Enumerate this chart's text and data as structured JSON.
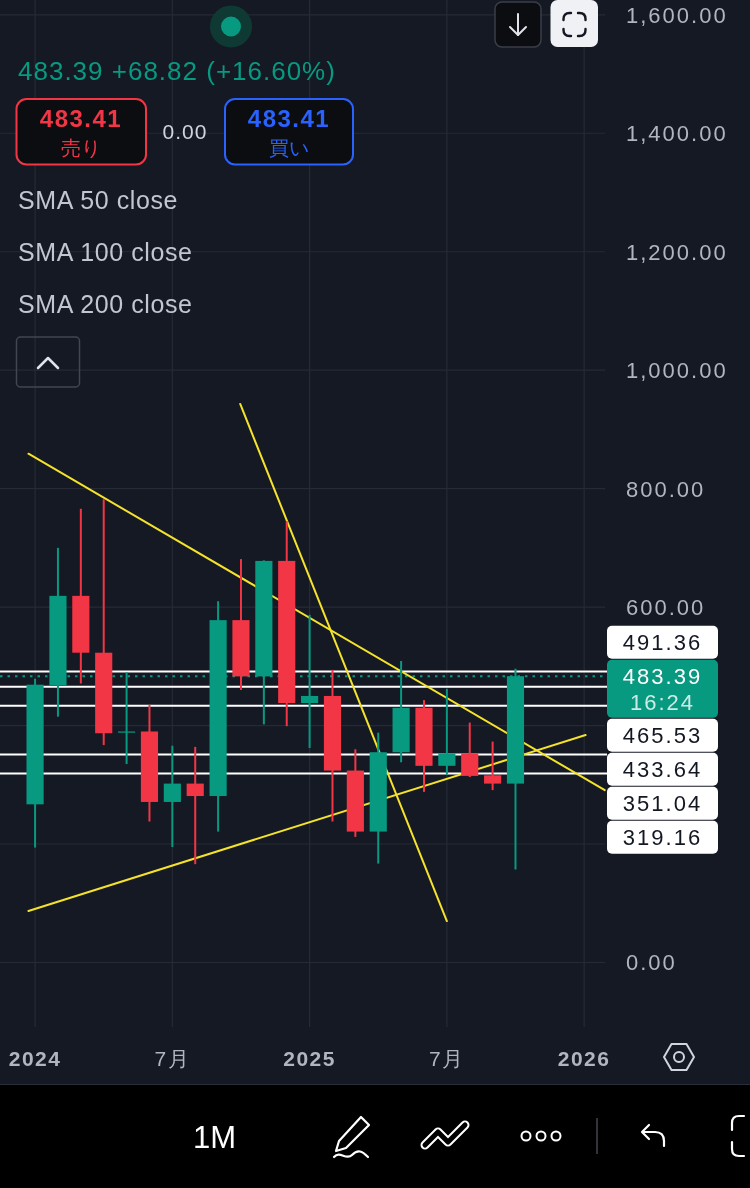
{
  "chart_data": {
    "type": "candlestick",
    "subtitle": "483.39 +68.82 (+16.60%)",
    "annotations": [
      "483.41",
      "売り",
      "0.00",
      "483.41",
      "買い",
      "SMA 50 close",
      "SMA 100 close",
      "SMA 200 close",
      "1M"
    ],
    "x": [
      "2024-01",
      "2024-02",
      "2024-03",
      "2024-04",
      "2024-05",
      "2024-06",
      "2024-07",
      "2024-08",
      "2024-09",
      "2024-10",
      "2024-11",
      "2024-12",
      "2025-01",
      "2025-02",
      "2025-03",
      "2025-04",
      "2025-05",
      "2025-06",
      "2025-07",
      "2025-08",
      "2025-09",
      "2025-10"
    ],
    "ohlc": [
      [
        267,
        479,
        194,
        469
      ],
      [
        468,
        700,
        415,
        619
      ],
      [
        619,
        766,
        471,
        523
      ],
      [
        523,
        782,
        367,
        387
      ],
      [
        388,
        490,
        335,
        390
      ],
      [
        390,
        435,
        238,
        271
      ],
      [
        271,
        366,
        195,
        302
      ],
      [
        302,
        364,
        166,
        281
      ],
      [
        281,
        610,
        221,
        578
      ],
      [
        578,
        681,
        460,
        483
      ],
      [
        483,
        679,
        402,
        678
      ],
      [
        678,
        745,
        399,
        438
      ],
      [
        438,
        587,
        362,
        450
      ],
      [
        450,
        494,
        238,
        324
      ],
      [
        324,
        360,
        212,
        221
      ],
      [
        221,
        388,
        167,
        355
      ],
      [
        355,
        509,
        338,
        430
      ],
      [
        430,
        443,
        288,
        332
      ],
      [
        332,
        462,
        317,
        353
      ],
      [
        353,
        405,
        313,
        315
      ],
      [
        316,
        373,
        291,
        302
      ],
      [
        302,
        496,
        157,
        483.39
      ]
    ],
    "colors": [
      "#089981",
      "#089981",
      "#f23645",
      "#f23645",
      "#089981",
      "#f23645",
      "#089981",
      "#f23645",
      "#089981",
      "#f23645",
      "#089981",
      "#f23645",
      "#089981",
      "#f23645",
      "#f23645",
      "#089981",
      "#089981",
      "#f23645",
      "#089981",
      "#f23645",
      "#f23645",
      "#089981"
    ],
    "series": [
      {
        "type": "line",
        "x": [
          "2023-12-23",
          "2026-01-29"
        ],
        "values": [
          859,
          291
        ],
        "color": "#f5e22b"
      },
      {
        "type": "line",
        "x": [
          "2023-12-23",
          "2026-01-03"
        ],
        "values": [
          87,
          384
        ],
        "color": "#f5e22b"
      },
      {
        "type": "line",
        "x": [
          "2024-09-30",
          "2025-07-01"
        ],
        "values": [
          943,
          70
        ],
        "color": "#f5e22b"
      }
    ],
    "ref_lines": [
      {
        "axis": "y",
        "value": 491.36,
        "label": "491.36",
        "color": "#ffffff"
      },
      {
        "axis": "y",
        "value": 483.39,
        "label": "483.39\n16:24",
        "color": "#089981",
        "line_style": "dotted"
      },
      {
        "axis": "y",
        "value": 465.53,
        "label": "465.53",
        "color": "#ffffff"
      },
      {
        "axis": "y",
        "value": 433.64,
        "label": "433.64",
        "color": "#ffffff"
      },
      {
        "axis": "y",
        "value": 351.04,
        "label": "351.04",
        "color": "#ffffff"
      },
      {
        "axis": "y",
        "value": 319.16,
        "label": "319.16",
        "color": "#ffffff"
      }
    ],
    "xlim": [
      "2023-11-15",
      "2026-02-01"
    ],
    "xticks": [
      {
        "value": "2024-01",
        "label": "2024"
      },
      {
        "value": "2024-07",
        "label": "7月"
      },
      {
        "value": "2025-01",
        "label": "2025"
      },
      {
        "value": "2025-07",
        "label": "7月"
      },
      {
        "value": "2026-01",
        "label": "2026"
      }
    ],
    "ylim": [
      -114,
      1625
    ],
    "yticks": [
      {
        "value": 0,
        "label": "0.00"
      },
      {
        "value": 200,
        "label": null
      },
      {
        "value": 400,
        "label": null
      },
      {
        "value": 600,
        "label": "600.00"
      },
      {
        "value": 800,
        "label": "800.00"
      },
      {
        "value": 1000,
        "label": "1,000.00"
      },
      {
        "value": 1200,
        "label": "1,200.00"
      },
      {
        "value": 1400,
        "label": "1,400.00"
      },
      {
        "value": 1600,
        "label": "1,600.00"
      }
    ],
    "grid": true
  }
}
